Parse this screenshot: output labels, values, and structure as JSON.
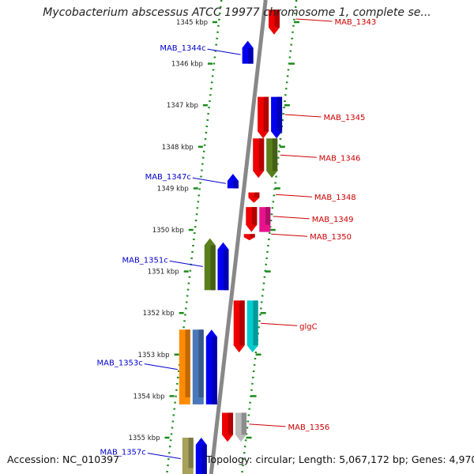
{
  "title": "Mycobacterium abscessus ATCC 19977 chromosome 1, complete se...",
  "footer": {
    "accession": "Accession: NC_010397",
    "summary": "Topology: circular; Length: 5,067,172 bp; Genes: 4,970"
  },
  "colors": {
    "backbone": "#888888",
    "scale_dots": "#1a8a1a",
    "left_label": "#0000cc",
    "right_label": "#cc0000"
  },
  "map": {
    "scale_kbp": [
      1345,
      1346,
      1347,
      1348,
      1349,
      1350,
      1351,
      1352,
      1353,
      1354,
      1355
    ],
    "scale_label_suffix": " kbp",
    "genes_left": [
      {
        "label": "MAB_1344c",
        "color": "#0000ee",
        "start_kbp": 1345.45,
        "end_kbp": 1346.0,
        "track": 0,
        "arrow": "up"
      },
      {
        "label": "MAB_1347c",
        "color": "#0000ee",
        "start_kbp": 1348.65,
        "end_kbp": 1349.0,
        "track": 0,
        "arrow": "up"
      },
      {
        "label": "MAB_1351c",
        "color": "#5a7f1d",
        "start_kbp": 1350.2,
        "end_kbp": 1351.45,
        "track": 1,
        "arrow": "up"
      },
      {
        "label": "",
        "color": "#0000ee",
        "start_kbp": 1350.3,
        "end_kbp": 1351.45,
        "track": 0,
        "arrow": "up"
      },
      {
        "label": "MAB_1353c",
        "color": "#ff8c00",
        "start_kbp": 1352.4,
        "end_kbp": 1354.2,
        "track": 2,
        "arrow": "none"
      },
      {
        "label": "",
        "color": "#4a78b8",
        "start_kbp": 1352.4,
        "end_kbp": 1354.2,
        "track": 1,
        "arrow": "none"
      },
      {
        "label": "",
        "color": "#0000ee",
        "start_kbp": 1352.4,
        "end_kbp": 1354.2,
        "track": 0,
        "arrow": "up"
      },
      {
        "label": "MAB_1357c",
        "color": "#a7a15a",
        "start_kbp": 1355.0,
        "end_kbp": 1355.9,
        "track": 1,
        "arrow": "none"
      },
      {
        "label": "",
        "color": "#0000ee",
        "start_kbp": 1355.0,
        "end_kbp": 1355.9,
        "track": 0,
        "arrow": "up"
      }
    ],
    "genes_right": [
      {
        "label": "MAB_1343",
        "color": "#ee0000",
        "start_kbp": 1344.7,
        "end_kbp": 1345.3,
        "track": 0,
        "arrow": "down"
      },
      {
        "label": "MAB_1345",
        "color": "#ee0000",
        "start_kbp": 1346.8,
        "end_kbp": 1347.8,
        "track": 0,
        "arrow": "down"
      },
      {
        "label": "",
        "color": "#0000ee",
        "start_kbp": 1346.8,
        "end_kbp": 1347.8,
        "track": 1,
        "arrow": "down"
      },
      {
        "label": "MAB_1346",
        "color": "#ee0000",
        "start_kbp": 1347.8,
        "end_kbp": 1348.75,
        "track": 0,
        "arrow": "down"
      },
      {
        "label": "",
        "color": "#5a7f1d",
        "start_kbp": 1347.8,
        "end_kbp": 1348.75,
        "track": 1,
        "arrow": "down"
      },
      {
        "label": "MAB_1348",
        "color": "#ee0000",
        "start_kbp": 1349.1,
        "end_kbp": 1349.35,
        "track": 0,
        "arrow": "down"
      },
      {
        "label": "MAB_1349",
        "color": "#ee0000",
        "start_kbp": 1349.45,
        "end_kbp": 1350.05,
        "track": 0,
        "arrow": "down"
      },
      {
        "label": "",
        "color": "#e8138c",
        "start_kbp": 1349.45,
        "end_kbp": 1350.05,
        "track": 1,
        "arrow": "none"
      },
      {
        "label": "MAB_1350",
        "color": "#ee0000",
        "start_kbp": 1350.1,
        "end_kbp": 1350.25,
        "track": 0,
        "arrow": "down"
      },
      {
        "label": "glgC",
        "color": "#ee0000",
        "start_kbp": 1351.7,
        "end_kbp": 1352.95,
        "track": 0,
        "arrow": "down"
      },
      {
        "label": "",
        "color": "#00cccc",
        "start_kbp": 1351.7,
        "end_kbp": 1352.95,
        "track": 1,
        "arrow": "down"
      },
      {
        "label": "MAB_1356",
        "color": "#ee0000",
        "start_kbp": 1354.4,
        "end_kbp": 1355.1,
        "track": 0,
        "arrow": "down"
      },
      {
        "label": "",
        "color": "#bbbbbb",
        "start_kbp": 1354.4,
        "end_kbp": 1355.1,
        "track": 1,
        "arrow": "down"
      }
    ]
  }
}
